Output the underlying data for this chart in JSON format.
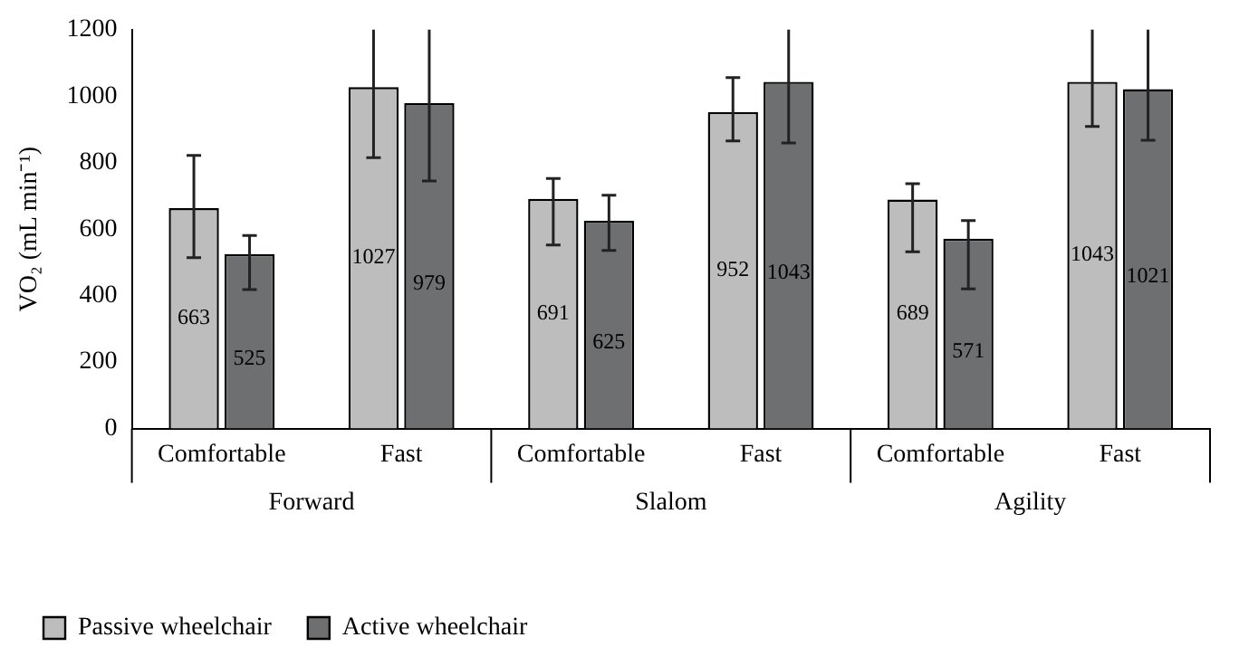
{
  "chart_data": {
    "type": "bar",
    "ylabel": "VO₂ (mL min⁻¹)",
    "categories": [
      "Comfortable",
      "Fast",
      "Comfortable",
      "Fast",
      "Comfortable",
      "Fast"
    ],
    "annotations": [
      "Forward",
      "Slalom",
      "Agility"
    ],
    "series": [
      {
        "name": "Passive wheelchair",
        "color": "#bdbdbd",
        "values": [
          663,
          1027,
          691,
          952,
          689,
          1043
        ],
        "errors": [
          [
            514,
            822
          ],
          [
            815,
            1200
          ],
          [
            552,
            752
          ],
          [
            865,
            1056
          ],
          [
            532,
            737
          ],
          [
            909,
            1200
          ]
        ]
      },
      {
        "name": "Active wheelchair",
        "color": "#6d6f71",
        "values": [
          525,
          979,
          625,
          1043,
          571,
          1021
        ],
        "errors": [
          [
            418,
            581
          ],
          [
            745,
            1200
          ],
          [
            536,
            702
          ],
          [
            859,
            1200
          ],
          [
            420,
            626
          ],
          [
            867,
            1200
          ]
        ]
      }
    ],
    "ylim": [
      0,
      1200
    ],
    "yticks": [
      0,
      200,
      400,
      600,
      800,
      1000,
      1200
    ],
    "grid": false,
    "legend": "bottom left",
    "data_labels": true
  }
}
